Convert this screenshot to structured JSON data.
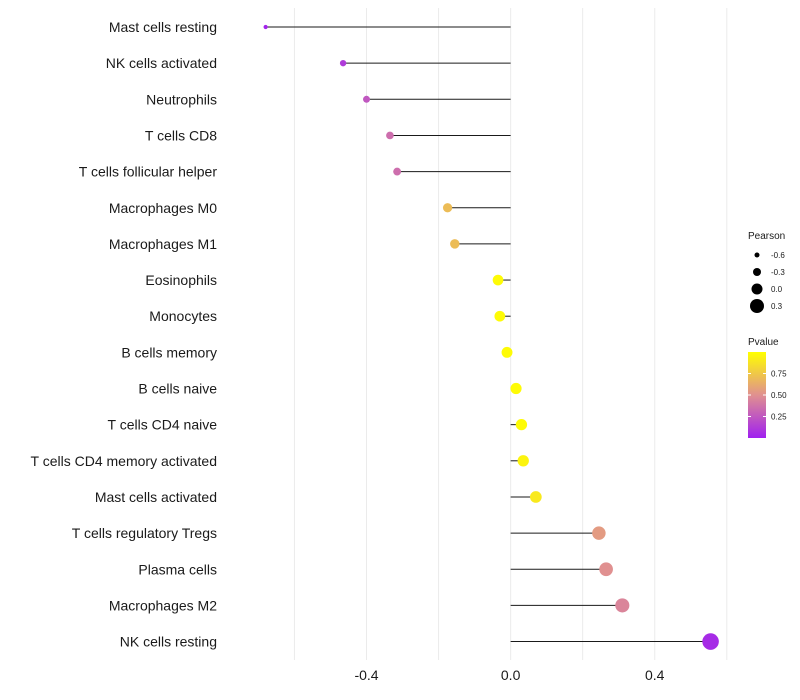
{
  "chart_data": {
    "type": "lollipop",
    "categories": [
      "Mast cells resting",
      "NK cells activated",
      "Neutrophils",
      "T cells CD8",
      "T cells follicular helper",
      "Macrophages M0",
      "Macrophages M1",
      "Eosinophils",
      "Monocytes",
      "B cells memory",
      "B cells naive",
      "T cells CD4 naive",
      "T cells CD4 memory activated",
      "Mast cells activated",
      "T cells regulatory  Tregs",
      "Plasma cells",
      "Macrophages M2",
      "NK cells resting"
    ],
    "values": [
      -0.68,
      -0.465,
      -0.4,
      -0.335,
      -0.315,
      -0.175,
      -0.155,
      -0.035,
      -0.03,
      -0.01,
      0.015,
      0.03,
      0.035,
      0.07,
      0.245,
      0.265,
      0.31,
      0.555
    ],
    "pvalues": [
      0.02,
      0.12,
      0.25,
      0.35,
      0.35,
      0.7,
      0.7,
      0.98,
      0.98,
      0.98,
      0.98,
      0.98,
      0.95,
      0.9,
      0.55,
      0.5,
      0.45,
      0.05
    ],
    "xlim": [
      -0.79,
      0.595
    ],
    "x_ticks": [
      -0.4,
      0.0,
      0.4
    ],
    "x_tick_labels": [
      "-0.4",
      "0.0",
      "0.4"
    ],
    "xlabel": "",
    "ylabel": "",
    "legend_size": {
      "title": "Pearson",
      "entries": [
        {
          "label": "-0.6",
          "value": -0.6
        },
        {
          "label": "-0.3",
          "value": -0.3
        },
        {
          "label": "0.0",
          "value": 0.0
        },
        {
          "label": "0.3",
          "value": 0.3
        }
      ]
    },
    "legend_color": {
      "title": "Pvalue",
      "ticks": [
        {
          "label": "0.75",
          "value": 0.75
        },
        {
          "label": "0.50",
          "value": 0.5
        },
        {
          "label": "0.25",
          "value": 0.25
        }
      ],
      "range": [
        0.0,
        1.0
      ],
      "low_color": "#a020f0",
      "mid_color": "#e09090",
      "high_color": "#ffff00"
    },
    "segment_color": "#1a1a1a",
    "grid": true,
    "legend_position": "right"
  }
}
